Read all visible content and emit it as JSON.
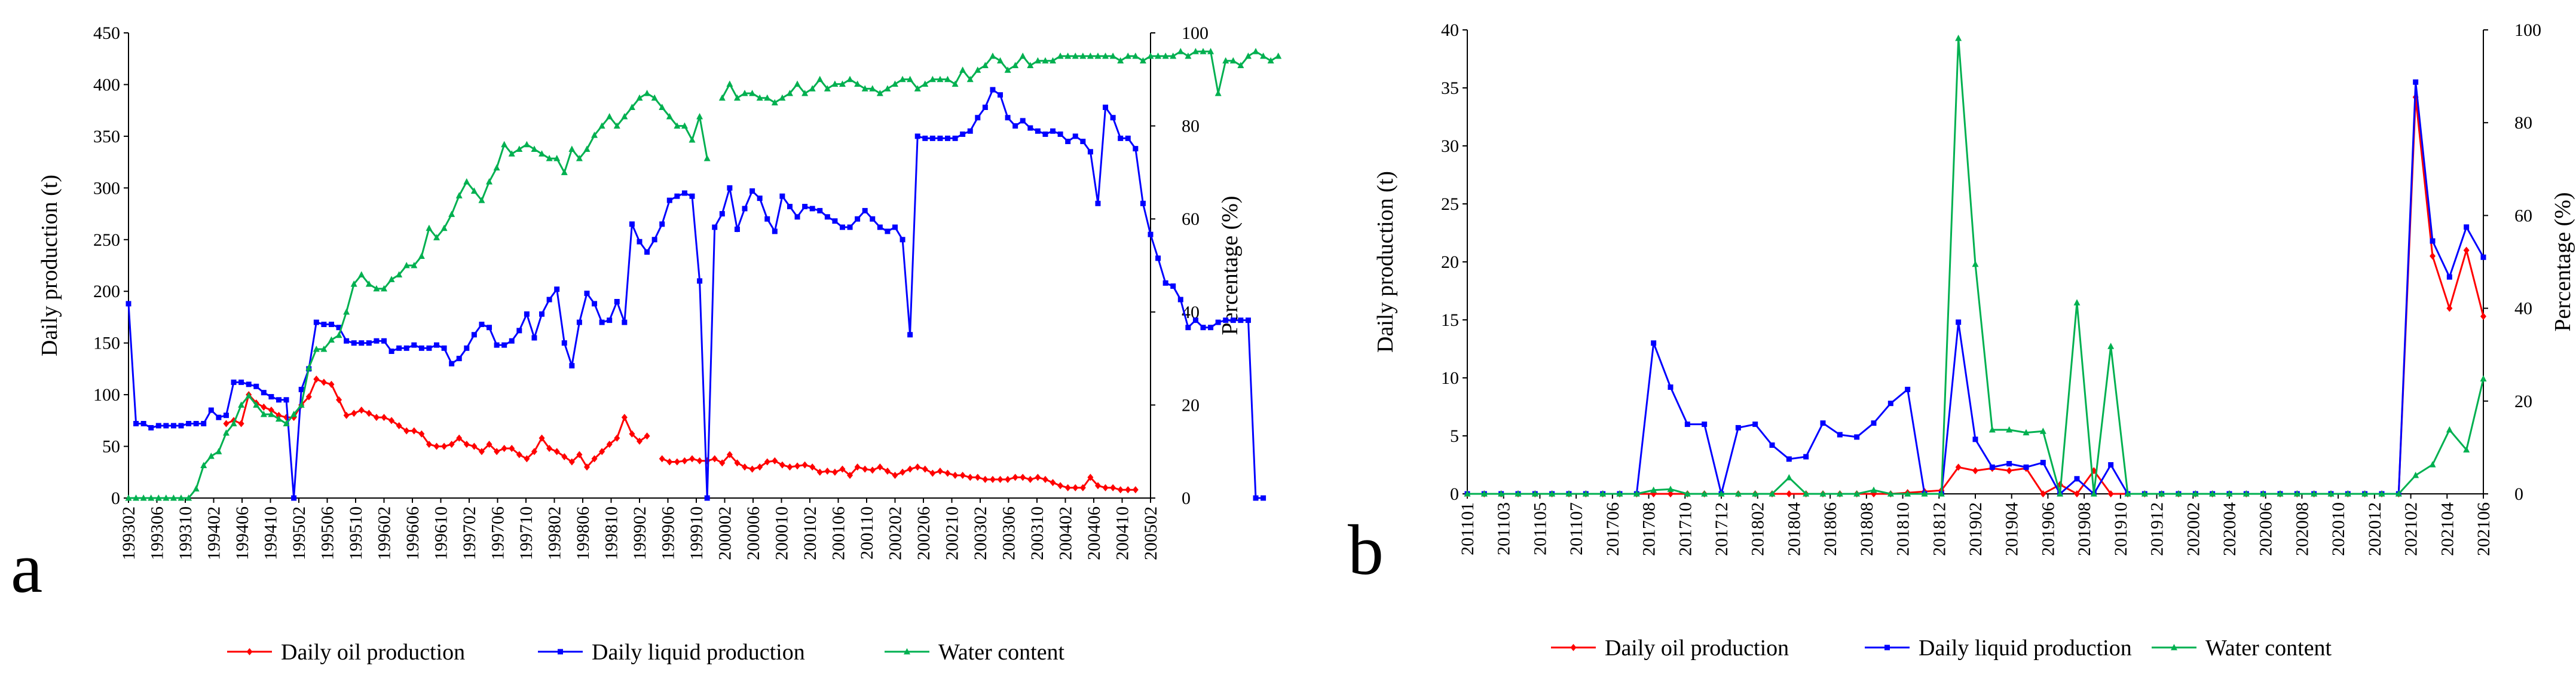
{
  "chart_data": [
    {
      "type": "line",
      "panel_label": "a",
      "xlabel": "",
      "ylabel_left": "Daily production (t)",
      "ylabel_right": "Percentage (%)",
      "ylim_left": [
        0,
        450
      ],
      "yticks_left": [
        0,
        50,
        100,
        150,
        200,
        250,
        300,
        350,
        400,
        450
      ],
      "ylim_right": [
        0,
        100
      ],
      "yticks_right": [
        0,
        20,
        40,
        60,
        80,
        100
      ],
      "xticks": [
        "199302",
        "199306",
        "199310",
        "199402",
        "199406",
        "199410",
        "199502",
        "199506",
        "199510",
        "199602",
        "199606",
        "199610",
        "199702",
        "199706",
        "199710",
        "199802",
        "199806",
        "199810",
        "199902",
        "199906",
        "199910",
        "200002",
        "200006",
        "200010",
        "200102",
        "200106",
        "200110",
        "200202",
        "200206",
        "200210",
        "200302",
        "200306",
        "200310",
        "200402",
        "200406",
        "200410",
        "200502"
      ],
      "start_month": "199302",
      "legend_position": "bottom",
      "series": [
        {
          "name": "Daily oil production",
          "axis": "left",
          "color": "#ff0000",
          "marker": "diamond",
          "values": [
            null,
            null,
            null,
            null,
            null,
            null,
            null,
            null,
            null,
            null,
            null,
            null,
            null,
            72,
            75,
            72,
            100,
            92,
            88,
            85,
            80,
            78,
            78,
            90,
            98,
            115,
            112,
            110,
            95,
            80,
            82,
            85,
            82,
            78,
            78,
            75,
            70,
            65,
            65,
            62,
            52,
            50,
            50,
            52,
            58,
            52,
            50,
            45,
            52,
            45,
            48,
            48,
            42,
            38,
            45,
            58,
            48,
            45,
            40,
            35,
            42,
            30,
            38,
            45,
            52,
            58,
            78,
            62,
            55,
            60,
            null,
            38,
            35,
            35,
            36,
            38,
            36,
            36,
            38,
            34,
            42,
            34,
            30,
            28,
            30,
            35,
            36,
            32,
            30,
            31,
            32,
            30,
            25,
            26,
            25,
            28,
            22,
            30,
            28,
            27,
            30,
            26,
            22,
            25,
            28,
            30,
            28,
            24,
            26,
            24,
            22,
            22,
            20,
            20,
            18,
            18,
            18,
            18,
            20,
            20,
            18,
            20,
            18,
            15,
            12,
            10,
            10,
            10,
            20,
            12,
            10,
            10,
            8,
            8,
            8,
            null,
            null
          ]
        },
        {
          "name": "Daily liquid production",
          "axis": "left",
          "color": "#0000ff",
          "marker": "square",
          "values": [
            188,
            72,
            72,
            68,
            70,
            70,
            70,
            70,
            72,
            72,
            72,
            85,
            78,
            80,
            112,
            112,
            110,
            108,
            102,
            98,
            95,
            95,
            0,
            105,
            125,
            170,
            168,
            168,
            165,
            152,
            150,
            150,
            150,
            152,
            152,
            142,
            145,
            145,
            148,
            145,
            145,
            148,
            145,
            130,
            135,
            145,
            158,
            168,
            165,
            148,
            148,
            152,
            162,
            178,
            155,
            178,
            192,
            202,
            150,
            128,
            170,
            198,
            188,
            170,
            172,
            190,
            170,
            265,
            248,
            238,
            250,
            265,
            288,
            292,
            295,
            292,
            210,
            0,
            262,
            275,
            300,
            260,
            280,
            297,
            290,
            270,
            258,
            292,
            282,
            272,
            282,
            280,
            278,
            272,
            268,
            262,
            262,
            270,
            278,
            270,
            262,
            258,
            262,
            250,
            158,
            350,
            348,
            348,
            348,
            348,
            348,
            352,
            355,
            368,
            378,
            395,
            390,
            368,
            360,
            365,
            358,
            355,
            352,
            355,
            352,
            345,
            350,
            345,
            335,
            285,
            378,
            368,
            348,
            348,
            338,
            285,
            255,
            232,
            208,
            205,
            192,
            165,
            172,
            165,
            165,
            170,
            172,
            172,
            172,
            172,
            0,
            0
          ]
        },
        {
          "name": "Water content",
          "axis": "right",
          "color": "#00b050",
          "marker": "triangle",
          "values": [
            0,
            0,
            0,
            0,
            0,
            0,
            0,
            0,
            0,
            2,
            7,
            9,
            10,
            14,
            16,
            20,
            22,
            20,
            18,
            18,
            17,
            16,
            18,
            20,
            28,
            32,
            32,
            34,
            35,
            40,
            46,
            48,
            46,
            45,
            45,
            47,
            48,
            50,
            50,
            52,
            58,
            56,
            58,
            61,
            65,
            68,
            66,
            64,
            68,
            71,
            76,
            74,
            75,
            76,
            75,
            74,
            73,
            73,
            70,
            75,
            73,
            75,
            78,
            80,
            82,
            80,
            82,
            84,
            86,
            87,
            86,
            84,
            82,
            80,
            80,
            77,
            82,
            73,
            null,
            86,
            89,
            86,
            87,
            87,
            86,
            86,
            85,
            86,
            87,
            89,
            87,
            88,
            90,
            88,
            89,
            89,
            90,
            89,
            88,
            88,
            87,
            88,
            89,
            90,
            90,
            88,
            89,
            90,
            90,
            90,
            89,
            92,
            90,
            92,
            93,
            95,
            94,
            92,
            93,
            95,
            93,
            94,
            94,
            94,
            95,
            95,
            95,
            95,
            95,
            95,
            95,
            95,
            94,
            95,
            95,
            94,
            95,
            95,
            95,
            95,
            96,
            95,
            96,
            96,
            96,
            87,
            94,
            94,
            93,
            95,
            96,
            95,
            94,
            95
          ]
        }
      ]
    },
    {
      "type": "line",
      "panel_label": "b",
      "xlabel": "",
      "ylabel_left": "Daily production (t)",
      "ylabel_right": "Percentage (%)",
      "ylim_left": [
        0,
        40
      ],
      "yticks_left": [
        0,
        5,
        10,
        15,
        20,
        25,
        30,
        35,
        40
      ],
      "ylim_right": [
        0,
        100
      ],
      "yticks_right": [
        0,
        20,
        40,
        60,
        80,
        100
      ],
      "xticks": [
        "201101",
        "201103",
        "201105",
        "201107",
        "201706",
        "201708",
        "201710",
        "201712",
        "201802",
        "201804",
        "201806",
        "201808",
        "201810",
        "201812",
        "201902",
        "201904",
        "201906",
        "201908",
        "201910",
        "201912",
        "202002",
        "202004",
        "202006",
        "202008",
        "202010",
        "202012",
        "202102",
        "202104",
        "202106"
      ],
      "legend_position": "bottom",
      "series": [
        {
          "name": "Daily oil production",
          "axis": "left",
          "color": "#ff0000",
          "marker": "diamond",
          "values": [
            0,
            0,
            0,
            0,
            0,
            0,
            0,
            0,
            0,
            0,
            0,
            0,
            0,
            0,
            0,
            0,
            0,
            0,
            0,
            0,
            0,
            0,
            0,
            0,
            0,
            0,
            0.1,
            0.2,
            0.3,
            2.3,
            2.0,
            2.2,
            2.0,
            2.2,
            0,
            0.8,
            0,
            2.0,
            0,
            0,
            0,
            0,
            0,
            0,
            0,
            0,
            0,
            0,
            0,
            0,
            0,
            0,
            0,
            0,
            0,
            0,
            34.2,
            20.5,
            16.0,
            21.0,
            15.3
          ]
        },
        {
          "name": "Daily liquid production",
          "axis": "left",
          "color": "#0000ff",
          "marker": "square",
          "values": [
            0,
            0,
            0,
            0,
            0,
            0,
            0,
            0,
            0,
            0,
            0,
            13.0,
            9.2,
            6.0,
            6.0,
            0,
            5.7,
            6.0,
            4.2,
            3.0,
            3.2,
            6.1,
            5.1,
            4.9,
            6.1,
            7.8,
            9.0,
            0,
            0,
            14.8,
            4.7,
            2.3,
            2.6,
            2.3,
            2.7,
            0,
            1.3,
            0,
            2.5,
            0,
            0,
            0,
            0,
            0,
            0,
            0,
            0,
            0,
            0,
            0,
            0,
            0,
            0,
            0,
            0,
            0,
            35.5,
            21.8,
            18.7,
            23.0,
            20.4
          ]
        },
        {
          "name": "Water content",
          "axis": "right",
          "color": "#00b050",
          "marker": "triangle",
          "values": [
            0,
            0,
            0,
            0,
            0,
            0,
            0,
            0,
            0,
            0,
            0,
            0.8,
            1.0,
            0,
            0,
            0,
            0,
            0,
            0,
            3.5,
            0,
            0,
            0,
            0,
            0.8,
            0,
            0,
            0,
            0,
            98.2,
            49.5,
            13.8,
            13.8,
            13.2,
            13.5,
            0,
            41.2,
            0,
            31.8,
            0,
            0,
            0,
            0,
            0,
            0,
            0,
            0,
            0,
            0,
            0,
            0,
            0,
            0,
            0,
            0,
            0,
            4.0,
            6.3,
            13.8,
            9.5,
            24.8
          ]
        }
      ]
    }
  ]
}
